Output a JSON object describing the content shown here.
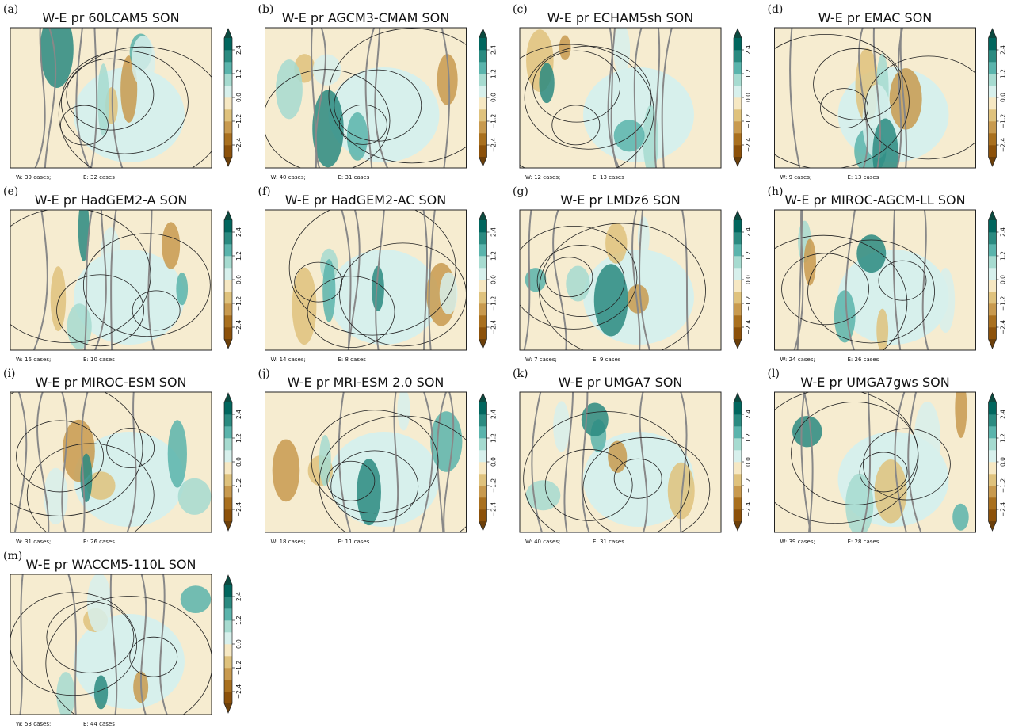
{
  "colorbar": {
    "lim": [
      -3,
      3
    ],
    "ticks": [
      {
        "value": -2.4,
        "label": "−2.4"
      },
      {
        "value": -1.2,
        "label": "−1.2"
      },
      {
        "value": 0,
        "label": "0.0"
      },
      {
        "value": 1.2,
        "label": "1.2"
      },
      {
        "value": 2.4,
        "label": "2.4"
      }
    ],
    "colors": [
      "#8c510a",
      "#a9701f",
      "#c89a4f",
      "#dfc27d",
      "#f6e8c3",
      "#d7f0ec",
      "#a6dbd0",
      "#5ab4ac",
      "#2a8a80",
      "#01665e"
    ],
    "under": "#6b3f0a",
    "over": "#0b4a40"
  },
  "panels": [
    {
      "label": "(a)",
      "title": "W-E pr 60LCAM5 SON",
      "west": "W: 39 cases;",
      "east": "E: 32 cases"
    },
    {
      "label": "(b)",
      "title": "W-E pr AGCM3-CMAM SON",
      "west": "W: 40 cases;",
      "east": "E: 31 cases"
    },
    {
      "label": "(c)",
      "title": "W-E pr ECHAM5sh SON",
      "west": "W: 12 cases;",
      "east": "E: 13 cases"
    },
    {
      "label": "(d)",
      "title": "W-E pr EMAC SON",
      "west": "W: 9 cases;",
      "east": "E: 13 cases"
    },
    {
      "label": "(e)",
      "title": "W-E pr HadGEM2-A SON",
      "west": "W: 16 cases;",
      "east": "E: 10 cases"
    },
    {
      "label": "(f)",
      "title": "W-E pr HadGEM2-AC SON",
      "west": "W: 14 cases;",
      "east": "E: 8 cases"
    },
    {
      "label": "(g)",
      "title": "W-E pr LMDz6 SON",
      "west": "W: 7 cases;",
      "east": "E: 9 cases"
    },
    {
      "label": "(h)",
      "title": "W-E pr MIROC-AGCM-LL SON",
      "west": "W: 24 cases;",
      "east": "E: 26 cases"
    },
    {
      "label": "(i)",
      "title": "W-E pr MIROC-ESM SON",
      "west": "W: 31 cases;",
      "east": "E: 26 cases"
    },
    {
      "label": "(j)",
      "title": "W-E pr MRI-ESM 2.0 SON",
      "west": "W: 18 cases;",
      "east": "E: 11 cases"
    },
    {
      "label": "(k)",
      "title": "W-E pr UMGA7 SON",
      "west": "W: 40 cases;",
      "east": "E: 31 cases"
    },
    {
      "label": "(l)",
      "title": "W-E pr UMGA7gws SON",
      "west": "W: 39 cases;",
      "east": "E: 28 cases"
    },
    {
      "label": "(m)",
      "title": "W-E pr WACCM5-110L SON",
      "west": "W: 53 cases;",
      "east": "E: 44 cases"
    }
  ]
}
